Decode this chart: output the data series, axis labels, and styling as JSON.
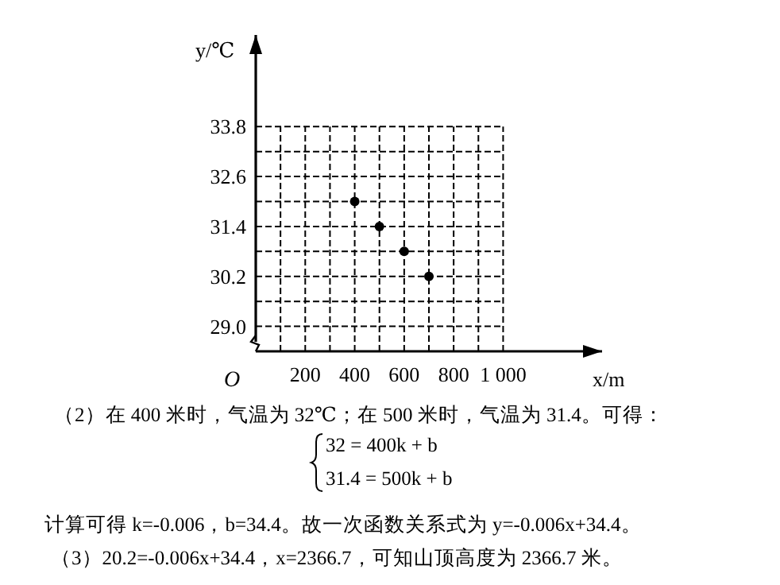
{
  "chart_data": {
    "type": "scatter",
    "x": [
      400,
      500,
      600,
      700
    ],
    "values": [
      32.0,
      31.4,
      30.8,
      30.2
    ],
    "color": "#000000",
    "marker": "circle",
    "xlabel": "x/m",
    "ylabel": "y/℃",
    "xlim": [
      0,
      1400
    ],
    "ylim": [
      28.4,
      36.0
    ],
    "xticks": [
      {
        "value": 100,
        "label": null
      },
      200,
      {
        "value": 300,
        "label": null
      },
      400,
      {
        "value": 500,
        "label": null
      },
      600,
      {
        "value": 700,
        "label": null
      },
      800,
      {
        "value": 900,
        "label": null
      },
      {
        "value": 1000,
        "label": "1 000"
      }
    ],
    "yticks": [
      {
        "value": 29.0,
        "label": "29.0"
      },
      {
        "value": 29.6,
        "label": null
      },
      {
        "value": 30.2,
        "label": "30.2"
      },
      {
        "value": 30.8,
        "label": null
      },
      {
        "value": 31.4,
        "label": "31.4"
      },
      {
        "value": 32.0,
        "label": null
      },
      {
        "value": 32.6,
        "label": "32.6"
      },
      {
        "value": 33.2,
        "label": null
      },
      {
        "value": 33.8,
        "label": "33.8"
      }
    ],
    "grid": true,
    "annotations": [
      "O",
      "（2）在 400 米时，气温为 32℃；在 500 米时，气温为 31.4。可得：",
      "32 = 400k + b",
      "31.4 = 500k + b",
      "计算可得 k=-0.006，b=34.4。故一次函数关系式为 y=-0.006x+34.4。",
      "（3）20.2=-0.006x+34.4，x=2366.7，可知山顶高度为 2366.7 米。"
    ]
  }
}
